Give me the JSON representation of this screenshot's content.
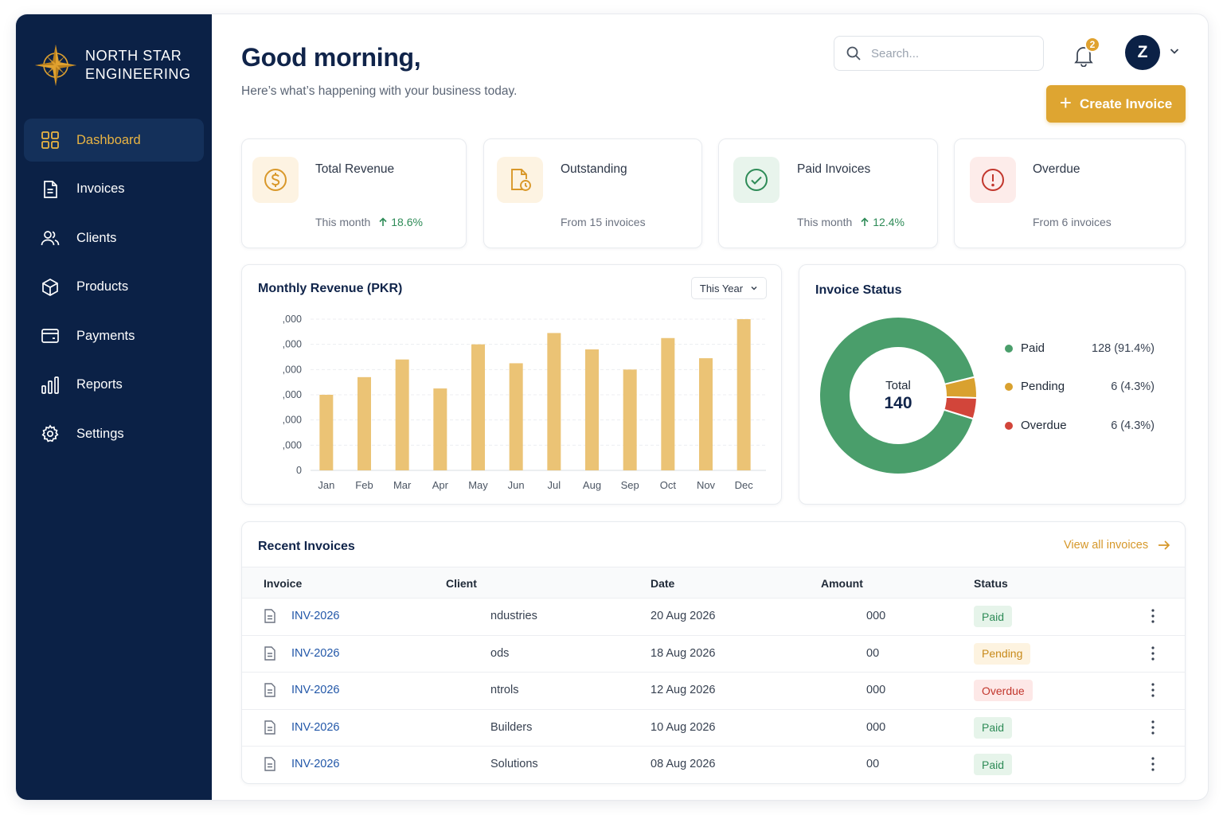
{
  "brand": {
    "line1": "NORTH STAR",
    "line2": "ENGINEERING",
    "logo_icon": "compass-star-icon"
  },
  "sidebar": {
    "items": [
      {
        "label": "Dashboard",
        "icon": "grid-icon",
        "active": true
      },
      {
        "label": "Invoices",
        "icon": "document-icon",
        "active": false
      },
      {
        "label": "Clients",
        "icon": "users-icon",
        "active": false
      },
      {
        "label": "Products",
        "icon": "box-icon",
        "active": false
      },
      {
        "label": "Payments",
        "icon": "card-icon",
        "active": false
      },
      {
        "label": "Reports",
        "icon": "bar-chart-icon",
        "active": false
      },
      {
        "label": "Settings",
        "icon": "gear-icon",
        "active": false
      }
    ]
  },
  "header": {
    "greeting": "Good morning,",
    "subtitle": "Here’s what’s happening with your business today.",
    "search_placeholder": "Search...",
    "notification_count": "2",
    "avatar_initial": "Z",
    "create_label": "Create Invoice"
  },
  "stats": [
    {
      "title": "Total Revenue",
      "value": "",
      "foot": "This month",
      "change": "18.6%",
      "icon": "dollar-icon"
    },
    {
      "title": "Outstanding",
      "value": "",
      "foot": "From 15 invoices",
      "change": "",
      "icon": "clock-document-icon"
    },
    {
      "title": "Paid Invoices",
      "value": "",
      "foot": "This month",
      "change": "12.4%",
      "icon": "check-circle-icon"
    },
    {
      "title": "Overdue",
      "value": "",
      "foot": "From 6 invoices",
      "change": "",
      "icon": "alert-circle-icon"
    }
  ],
  "revenue": {
    "title": "Monthly Revenue (PKR)",
    "period": "This Year"
  },
  "chart_data": {
    "type": "bar",
    "title": "Monthly Revenue (PKR)",
    "categories": [
      "Jan",
      "Feb",
      "Mar",
      "Apr",
      "May",
      "Jun",
      "Jul",
      "Aug",
      "Sep",
      "Oct",
      "Nov",
      "Dec"
    ],
    "values": [
      3.0,
      3.7,
      4.4,
      3.25,
      5.0,
      4.25,
      5.45,
      4.8,
      4.0,
      5.25,
      4.45,
      6.0
    ],
    "ytick_labels": [
      "0",
      ",000",
      ",000",
      ",000",
      ",000",
      ",000",
      ",000"
    ],
    "ylim": [
      0,
      6
    ],
    "grid": true,
    "color": "#ebc375"
  },
  "status": {
    "title": "Invoice Status",
    "total_label": "Total",
    "total_value": "140",
    "items": [
      {
        "name": "Paid",
        "value": "128 (91.4%)",
        "count": 128,
        "color": "#4a9e6b"
      },
      {
        "name": "Pending",
        "value": "6 (4.3%)",
        "count": 6,
        "color": "#d9a12f"
      },
      {
        "name": "Overdue",
        "value": "6 (4.3%)",
        "count": 6,
        "color": "#d2453a"
      }
    ]
  },
  "recent": {
    "title": "Recent Invoices",
    "view_all": "View all invoices",
    "columns": [
      "Invoice",
      "Client",
      "Date",
      "Amount",
      "Status"
    ],
    "rows": [
      {
        "invoice": "INV-2026",
        "client": "ndustries",
        "date": "20 Aug 2026",
        "amount": "000",
        "status": "Paid",
        "kind": "paid"
      },
      {
        "invoice": "INV-2026",
        "client": "ods",
        "date": "18 Aug 2026",
        "amount": "00",
        "status": "Pending",
        "kind": "pending"
      },
      {
        "invoice": "INV-2026",
        "client": "ntrols",
        "date": "12 Aug 2026",
        "amount": "000",
        "status": "Overdue",
        "kind": "overdue"
      },
      {
        "invoice": "INV-2026",
        "client": "Builders",
        "date": "10 Aug 2026",
        "amount": "000",
        "status": "Paid",
        "kind": "paid"
      },
      {
        "invoice": "INV-2026",
        "client": "Solutions",
        "date": "08 Aug 2026",
        "amount": "00",
        "status": "Paid",
        "kind": "paid"
      }
    ]
  },
  "colors": {
    "navy": "#0b2146",
    "gold": "#dea531",
    "green": "#2e8b57",
    "red": "#d2453a"
  }
}
